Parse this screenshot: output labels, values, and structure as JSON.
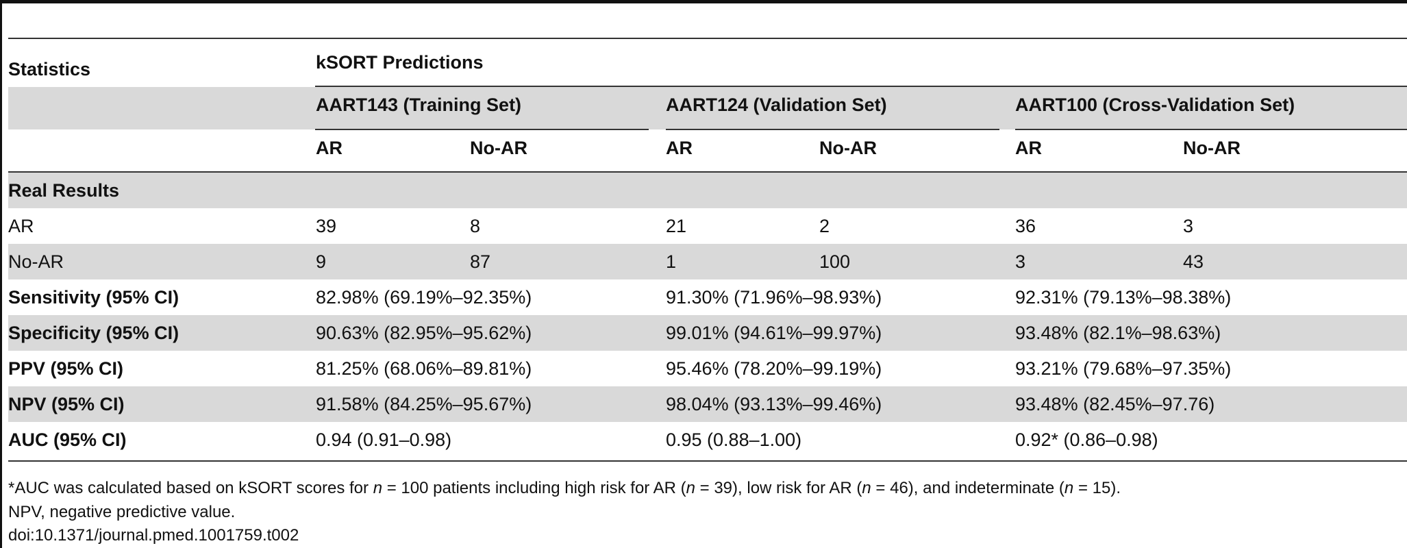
{
  "table": {
    "corner_label": "Statistics",
    "predictions_label": "kSORT Predictions",
    "groups": [
      "AART143 (Training Set)",
      "AART124 (Validation Set)",
      "AART100 (Cross-Validation Set)"
    ],
    "subheaders": [
      "AR",
      "No-AR",
      "AR",
      "No-AR",
      "AR",
      "No-AR"
    ],
    "section_label": "Real Results",
    "count_rows": [
      {
        "label": "AR",
        "values": [
          "39",
          "8",
          "21",
          "2",
          "36",
          "3"
        ]
      },
      {
        "label": "No-AR",
        "values": [
          "9",
          "87",
          "1",
          "100",
          "3",
          "43"
        ]
      }
    ],
    "stat_rows": [
      {
        "label": "Sensitivity (95% CI)",
        "values": [
          "82.98% (69.19%–92.35%)",
          "91.30% (71.96%–98.93%)",
          "92.31% (79.13%–98.38%)"
        ]
      },
      {
        "label": "Specificity (95% CI)",
        "values": [
          "90.63% (82.95%–95.62%)",
          "99.01% (94.61%–99.97%)",
          "93.48% (82.1%–98.63%)"
        ]
      },
      {
        "label": "PPV (95% CI)",
        "values": [
          "81.25% (68.06%–89.81%)",
          "95.46% (78.20%–99.19%)",
          "93.21% (79.68%–97.35%)"
        ]
      },
      {
        "label": "NPV (95% CI)",
        "values": [
          "91.58% (84.25%–95.67%)",
          "98.04% (93.13%–99.46%)",
          "93.48% (82.45%–97.76)"
        ]
      },
      {
        "label": "AUC (95% CI)",
        "values": [
          "0.94 (0.91–0.98)",
          "0.95 (0.88–1.00)",
          "0.92* (0.86–0.98)"
        ]
      }
    ]
  },
  "footnotes": {
    "auc_note": {
      "p1": "*AUC was calculated based on kSORT scores for ",
      "n_sym": "n",
      "p2": " = 100 patients including high risk for AR (",
      "p3": " = 39), low risk for AR (",
      "p4": " = 46), and indeterminate (",
      "p5": " = 15)."
    },
    "abbrev": "NPV, negative predictive value.",
    "doi": "doi:10.1371/journal.pmed.1001759.t002"
  }
}
